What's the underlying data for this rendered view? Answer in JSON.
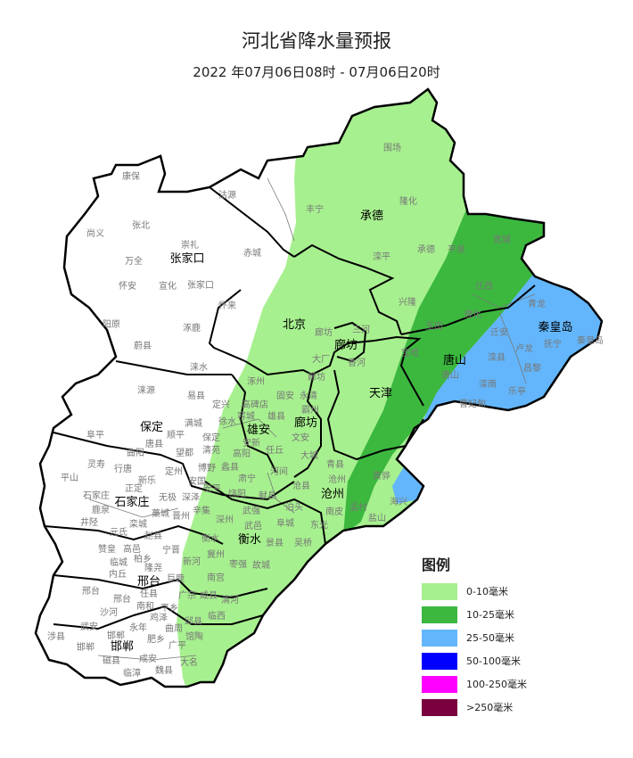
{
  "title": "河北省降水量预报",
  "subtitle": "2022 年07月06日08时 - 07月06日20时",
  "legend": {
    "title": "图例",
    "items": [
      {
        "label": "0-10毫米",
        "color": "#a7f08f"
      },
      {
        "label": "10-25毫米",
        "color": "#3cb83f"
      },
      {
        "label": "25-50毫米",
        "color": "#63b6fb"
      },
      {
        "label": "50-100毫米",
        "color": "#0000ff"
      },
      {
        "label": "100-250毫米",
        "color": "#ff00ff"
      },
      {
        "label": ">250毫米",
        "color": "#7a0040"
      }
    ]
  },
  "cities": [
    "张家口",
    "北京",
    "承德",
    "廊坊",
    "唐山",
    "秦皇岛",
    "天津",
    "保定",
    "雄安",
    "廊坊",
    "沧州",
    "石家庄",
    "衡水",
    "邢台",
    "邯郸"
  ],
  "counties": [
    "康保",
    "沽源",
    "张北",
    "尚义",
    "崇礼",
    "赤城",
    "万全",
    "怀安",
    "宣化",
    "张家口",
    "怀来",
    "阳原",
    "涿鹿",
    "蔚县",
    "围场",
    "隆化",
    "丰宁",
    "滦平",
    "承德",
    "平泉",
    "宽城",
    "兴隆",
    "青龙",
    "迁西",
    "遵化",
    "抚宁",
    "秦皇岛",
    "迁安",
    "卢龙",
    "玉田",
    "三河",
    "廊坊",
    "大厂",
    "香河",
    "唐山",
    "滦县",
    "昌黎",
    "滦南",
    "乐亭",
    "曹妃甸",
    "宝坻",
    "涞水",
    "涞源",
    "易县",
    "阜平",
    "满城",
    "顺平",
    "唐县",
    "曲阳",
    "望都",
    "保定",
    "清苑",
    "徐水",
    "定兴",
    "高碑店",
    "涿州",
    "灵寿",
    "行唐",
    "平山",
    "定州",
    "新乐",
    "安国",
    "博野",
    "蠡县",
    "正定",
    "石家庄",
    "鹿泉",
    "无极",
    "深泽",
    "安平",
    "饶阳",
    "藁城",
    "晋州",
    "辛集",
    "深州",
    "武强",
    "井陉",
    "栾城",
    "元氏",
    "赵县",
    "武邑",
    "衡水",
    "赞皇",
    "高邑",
    "柏乡",
    "宁晋",
    "新河",
    "冀州",
    "枣强",
    "故城",
    "临城",
    "内丘",
    "隆尧",
    "巨鹿",
    "南宫",
    "邢台",
    "邢台",
    "任县",
    "广宗",
    "威县",
    "清河",
    "沙河",
    "南和",
    "平乡",
    "鸡泽",
    "临西",
    "永年",
    "武安",
    "邯郸",
    "曲周",
    "邱县",
    "涉县",
    "馆陶",
    "邯郸",
    "肥乡",
    "广平",
    "磁县",
    "成安",
    "大名",
    "临漳",
    "魏县",
    "廊坊",
    "固安",
    "永清",
    "霸州",
    "容城",
    "雄县",
    "文安",
    "安新",
    "任丘",
    "高阳",
    "大城",
    "青县",
    "河间",
    "肃宁",
    "沧州",
    "黄骅",
    "沧县",
    "献县",
    "海兴",
    "泊头",
    "孟村",
    "南皮",
    "盐山",
    "阜城",
    "东光",
    "景县",
    "吴桥"
  ],
  "colors": {
    "border": "#000000",
    "county_label": "#777777",
    "city_label": "#000000"
  }
}
